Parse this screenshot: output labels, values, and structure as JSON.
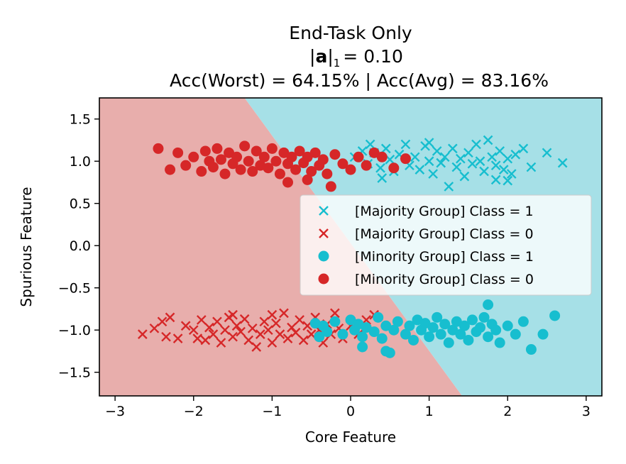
{
  "chart_data": {
    "type": "scatter",
    "title_line1": "End-Task Only",
    "title_line2_symbol": "a",
    "title_line2_value": "= 0.10",
    "title_line3": "Acc(Worst) = 64.15% | Acc(Avg) = 83.16%",
    "xlabel": "Core Feature",
    "ylabel": "Spurious Feature",
    "xlim": [
      -3.2,
      3.2
    ],
    "ylim": [
      -1.78,
      1.75
    ],
    "xticks": [
      -3,
      -2,
      -1,
      0,
      1,
      2,
      3
    ],
    "xtick_labels": [
      "−3",
      "−2",
      "−1",
      "0",
      "1",
      "2",
      "3"
    ],
    "yticks": [
      1.5,
      1.0,
      0.5,
      0.0,
      -0.5,
      -1.0,
      -1.5
    ],
    "ytick_labels": [
      "1.5",
      "1.0",
      "0.5",
      "0.0",
      "−0.5",
      "−1.0",
      "−1.5"
    ],
    "decision_boundary": {
      "points": [
        [
          -1.35,
          1.75
        ],
        [
          1.42,
          -1.78
        ]
      ],
      "left_region_color": "#e8aeac",
      "right_region_color": "#a6e0e7",
      "left_class": "Class = 0",
      "right_class": "Class = 1"
    },
    "colors": {
      "class1": "#17becf",
      "class0": "#d62728"
    },
    "legend_position": "center-right",
    "series": [
      {
        "name": "[Majority Group] Class = 1",
        "marker": "x",
        "color": "#17becf",
        "points": [
          [
            0.05,
            1.05
          ],
          [
            0.15,
            1.12
          ],
          [
            0.22,
            0.97
          ],
          [
            0.3,
            1.1
          ],
          [
            0.38,
            0.92
          ],
          [
            0.45,
            1.15
          ],
          [
            0.5,
            1.02
          ],
          [
            0.55,
            0.88
          ],
          [
            0.62,
            1.08
          ],
          [
            0.7,
            1.2
          ],
          [
            0.75,
            0.95
          ],
          [
            0.82,
            1.05
          ],
          [
            0.88,
            0.9
          ],
          [
            0.95,
            1.18
          ],
          [
            1.0,
            1.0
          ],
          [
            1.05,
            0.85
          ],
          [
            1.1,
            1.12
          ],
          [
            1.15,
            0.98
          ],
          [
            1.2,
            1.05
          ],
          [
            1.25,
            0.7
          ],
          [
            1.3,
            1.15
          ],
          [
            1.35,
            0.93
          ],
          [
            1.4,
            1.03
          ],
          [
            1.45,
            0.82
          ],
          [
            1.5,
            1.1
          ],
          [
            1.55,
            0.97
          ],
          [
            1.6,
            1.2
          ],
          [
            1.65,
            1.0
          ],
          [
            1.7,
            0.88
          ],
          [
            1.75,
            1.25
          ],
          [
            1.8,
            1.05
          ],
          [
            1.85,
            0.95
          ],
          [
            1.9,
            1.12
          ],
          [
            1.95,
            0.9
          ],
          [
            2.0,
            1.03
          ],
          [
            2.05,
            0.85
          ],
          [
            2.1,
            1.08
          ],
          [
            2.2,
            1.15
          ],
          [
            2.3,
            0.93
          ],
          [
            2.5,
            1.1
          ],
          [
            2.7,
            0.98
          ],
          [
            2.0,
            0.77
          ],
          [
            1.85,
            0.78
          ],
          [
            0.4,
            0.8
          ],
          [
            1.0,
            1.22
          ],
          [
            0.25,
            1.2
          ]
        ]
      },
      {
        "name": "[Majority Group] Class = 0",
        "marker": "x",
        "color": "#d62728",
        "points": [
          [
            -2.65,
            -1.05
          ],
          [
            -2.4,
            -0.9
          ],
          [
            -2.3,
            -0.85
          ],
          [
            -2.2,
            -1.1
          ],
          [
            -2.1,
            -0.95
          ],
          [
            -2.0,
            -1.0
          ],
          [
            -1.9,
            -0.88
          ],
          [
            -1.85,
            -1.12
          ],
          [
            -1.8,
            -0.97
          ],
          [
            -1.75,
            -1.05
          ],
          [
            -1.7,
            -0.9
          ],
          [
            -1.65,
            -1.15
          ],
          [
            -1.6,
            -1.0
          ],
          [
            -1.55,
            -0.85
          ],
          [
            -1.5,
            -1.08
          ],
          [
            -1.45,
            -0.95
          ],
          [
            -1.4,
            -1.02
          ],
          [
            -1.35,
            -0.87
          ],
          [
            -1.3,
            -1.12
          ],
          [
            -1.25,
            -0.98
          ],
          [
            -1.2,
            -1.2
          ],
          [
            -1.15,
            -1.05
          ],
          [
            -1.1,
            -0.9
          ],
          [
            -1.05,
            -1.0
          ],
          [
            -1.0,
            -1.15
          ],
          [
            -0.95,
            -0.92
          ],
          [
            -0.9,
            -1.05
          ],
          [
            -0.85,
            -0.8
          ],
          [
            -0.8,
            -1.1
          ],
          [
            -0.75,
            -0.97
          ],
          [
            -0.7,
            -1.03
          ],
          [
            -0.65,
            -0.88
          ],
          [
            -0.6,
            -1.12
          ],
          [
            -0.55,
            -0.95
          ],
          [
            -0.5,
            -1.05
          ],
          [
            -0.45,
            -0.85
          ],
          [
            -0.4,
            -1.0
          ],
          [
            -0.35,
            -1.15
          ],
          [
            -0.3,
            -0.93
          ],
          [
            -0.25,
            -1.05
          ],
          [
            -0.2,
            -0.8
          ],
          [
            -0.15,
            -0.98
          ],
          [
            -0.1,
            -1.1
          ],
          [
            0.0,
            -0.95
          ],
          [
            0.1,
            -1.05
          ],
          [
            0.2,
            -0.88
          ],
          [
            0.3,
            -0.82
          ],
          [
            -2.5,
            -0.98
          ],
          [
            -2.35,
            -1.08
          ],
          [
            -1.95,
            -1.1
          ],
          [
            -1.5,
            -0.82
          ],
          [
            -1.0,
            -0.82
          ]
        ]
      },
      {
        "name": "[Minority Group] Class = 1",
        "marker": "o",
        "color": "#17becf",
        "points": [
          [
            -0.45,
            -0.92
          ],
          [
            -0.4,
            -1.08
          ],
          [
            -0.35,
            -0.95
          ],
          [
            -0.3,
            -1.02
          ],
          [
            -0.2,
            -0.9
          ],
          [
            -0.1,
            -1.05
          ],
          [
            0.0,
            -0.88
          ],
          [
            0.05,
            -1.0
          ],
          [
            0.1,
            -0.93
          ],
          [
            0.15,
            -1.08
          ],
          [
            0.2,
            -0.97
          ],
          [
            0.3,
            -1.02
          ],
          [
            0.35,
            -0.85
          ],
          [
            0.4,
            -1.1
          ],
          [
            0.45,
            -0.95
          ],
          [
            0.5,
            -1.27
          ],
          [
            0.55,
            -1.0
          ],
          [
            0.6,
            -0.9
          ],
          [
            0.7,
            -1.05
          ],
          [
            0.75,
            -0.95
          ],
          [
            0.8,
            -1.12
          ],
          [
            0.85,
            -0.88
          ],
          [
            0.9,
            -1.0
          ],
          [
            0.95,
            -0.92
          ],
          [
            1.0,
            -1.08
          ],
          [
            1.05,
            -0.97
          ],
          [
            1.1,
            -0.85
          ],
          [
            1.15,
            -1.05
          ],
          [
            1.2,
            -0.93
          ],
          [
            1.25,
            -1.15
          ],
          [
            1.3,
            -1.0
          ],
          [
            1.35,
            -0.9
          ],
          [
            1.4,
            -1.05
          ],
          [
            1.45,
            -0.95
          ],
          [
            1.5,
            -1.12
          ],
          [
            1.55,
            -0.88
          ],
          [
            1.6,
            -1.02
          ],
          [
            1.65,
            -0.97
          ],
          [
            1.7,
            -0.85
          ],
          [
            1.75,
            -1.08
          ],
          [
            1.8,
            -0.93
          ],
          [
            1.85,
            -1.0
          ],
          [
            1.9,
            -1.15
          ],
          [
            2.0,
            -0.95
          ],
          [
            2.1,
            -1.05
          ],
          [
            2.2,
            -0.9
          ],
          [
            2.3,
            -1.23
          ],
          [
            2.45,
            -1.05
          ],
          [
            2.6,
            -0.83
          ],
          [
            1.75,
            -0.7
          ],
          [
            0.15,
            -1.2
          ],
          [
            0.45,
            -1.25
          ]
        ]
      },
      {
        "name": "[Minority Group] Class = 0",
        "marker": "o",
        "color": "#d62728",
        "points": [
          [
            -2.45,
            1.15
          ],
          [
            -2.3,
            0.9
          ],
          [
            -2.2,
            1.1
          ],
          [
            -2.1,
            0.95
          ],
          [
            -2.0,
            1.05
          ],
          [
            -1.9,
            0.88
          ],
          [
            -1.85,
            1.12
          ],
          [
            -1.8,
            1.0
          ],
          [
            -1.75,
            0.93
          ],
          [
            -1.7,
            1.15
          ],
          [
            -1.65,
            1.02
          ],
          [
            -1.6,
            0.85
          ],
          [
            -1.55,
            1.1
          ],
          [
            -1.5,
            0.97
          ],
          [
            -1.45,
            1.05
          ],
          [
            -1.4,
            0.9
          ],
          [
            -1.35,
            1.18
          ],
          [
            -1.3,
            1.0
          ],
          [
            -1.25,
            0.88
          ],
          [
            -1.2,
            1.12
          ],
          [
            -1.15,
            0.95
          ],
          [
            -1.1,
            1.05
          ],
          [
            -1.05,
            0.92
          ],
          [
            -1.0,
            1.15
          ],
          [
            -0.95,
            1.0
          ],
          [
            -0.9,
            0.85
          ],
          [
            -0.85,
            1.1
          ],
          [
            -0.8,
            0.97
          ],
          [
            -0.75,
            1.05
          ],
          [
            -0.7,
            0.9
          ],
          [
            -0.65,
            1.12
          ],
          [
            -0.6,
            0.98
          ],
          [
            -0.55,
            1.05
          ],
          [
            -0.5,
            0.88
          ],
          [
            -0.45,
            1.1
          ],
          [
            -0.4,
            0.95
          ],
          [
            -0.35,
            1.02
          ],
          [
            -0.3,
            0.85
          ],
          [
            -0.2,
            1.08
          ],
          [
            -0.1,
            0.97
          ],
          [
            0.0,
            0.9
          ],
          [
            0.1,
            1.05
          ],
          [
            0.2,
            0.95
          ],
          [
            0.3,
            1.1
          ],
          [
            0.4,
            1.05
          ],
          [
            0.55,
            0.92
          ],
          [
            0.7,
            1.03
          ],
          [
            -0.25,
            0.7
          ],
          [
            -0.8,
            0.75
          ],
          [
            -0.55,
            0.78
          ]
        ]
      }
    ]
  }
}
